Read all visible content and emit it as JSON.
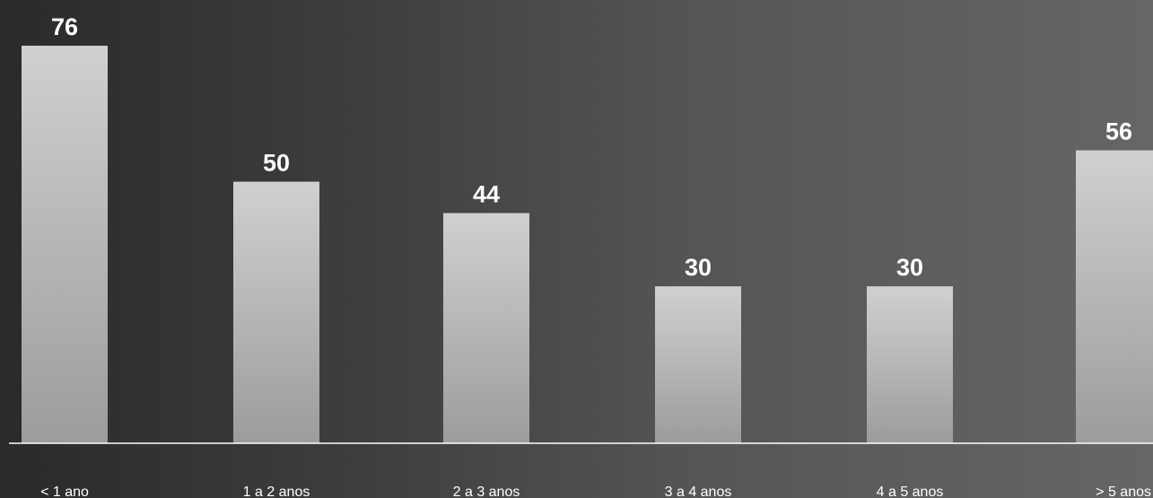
{
  "chart_data": {
    "type": "bar",
    "categories": [
      "< 1 ano",
      "1 a 2 anos",
      "2 a 3 anos",
      "3 a 4 anos",
      "4 a 5 anos",
      "> 5 anos"
    ],
    "values": [
      76,
      50,
      44,
      30,
      30,
      56
    ],
    "title": "",
    "xlabel": "",
    "ylabel": "",
    "data_labels": true,
    "grid": false,
    "legend": "none",
    "colors": {
      "bar_top": "#d0d0d0",
      "bar_bottom": "#9c9c9c",
      "label": "#ffffff",
      "axis": "#ffffff"
    }
  }
}
